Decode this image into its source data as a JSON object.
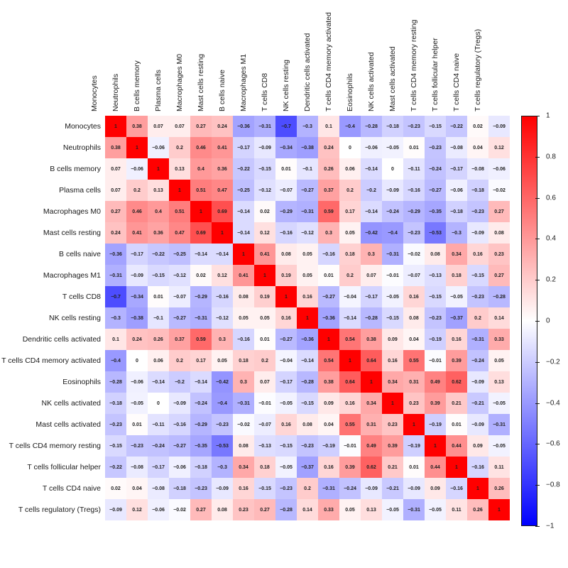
{
  "chart_data": {
    "type": "heatmap",
    "subtype": "correlation-matrix",
    "title": "",
    "categories": [
      "Monocytes",
      "Neutrophils",
      "B cells memory",
      "Plasma cells",
      "Macrophages M0",
      "Mast cells resting",
      "B cells naive",
      "Macrophages M1",
      "T cells CD8",
      "NK cells resting",
      "Dendritic cells activated",
      "T cells CD4 memory activated",
      "Eosinophils",
      "NK cells activated",
      "Mast cells activated",
      "T cells CD4 memory resting",
      "T cells follicular helper",
      "T cells CD4 naive",
      "T cells regulatory (Tregs)"
    ],
    "matrix": [
      [
        1,
        0.38,
        0.07,
        0.07,
        0.27,
        0.24,
        -0.36,
        -0.31,
        -0.7,
        -0.3,
        0.1,
        -0.4,
        -0.28,
        -0.18,
        -0.23,
        -0.15,
        -0.22,
        0.02,
        -0.09
      ],
      [
        0.38,
        1,
        -0.06,
        0.2,
        0.46,
        0.41,
        -0.17,
        -0.09,
        -0.34,
        -0.38,
        0.24,
        0,
        -0.06,
        -0.05,
        0.01,
        -0.23,
        -0.08,
        0.04,
        0.12
      ],
      [
        0.07,
        -0.06,
        1,
        0.13,
        0.4,
        0.36,
        -0.22,
        -0.15,
        0.01,
        -0.1,
        0.26,
        0.06,
        -0.14,
        0,
        -0.11,
        -0.24,
        -0.17,
        -0.08,
        -0.06
      ],
      [
        0.07,
        0.2,
        0.13,
        1,
        0.51,
        0.47,
        -0.25,
        -0.12,
        -0.07,
        -0.27,
        0.37,
        0.2,
        -0.2,
        -0.09,
        -0.16,
        -0.27,
        -0.06,
        -0.18,
        -0.02
      ],
      [
        0.27,
        0.46,
        0.4,
        0.51,
        1,
        0.69,
        -0.14,
        0.02,
        -0.29,
        -0.31,
        0.59,
        0.17,
        -0.14,
        -0.24,
        -0.29,
        -0.35,
        -0.18,
        -0.23,
        0.27
      ],
      [
        0.24,
        0.41,
        0.36,
        0.47,
        0.69,
        1,
        -0.14,
        0.12,
        -0.16,
        -0.12,
        0.3,
        0.05,
        -0.42,
        -0.4,
        -0.23,
        -0.53,
        -0.3,
        -0.09,
        0.08
      ],
      [
        -0.36,
        -0.17,
        -0.22,
        -0.25,
        -0.14,
        -0.14,
        1,
        0.41,
        0.08,
        0.05,
        -0.16,
        0.18,
        0.3,
        -0.31,
        -0.02,
        0.08,
        0.34,
        0.16,
        0.23
      ],
      [
        -0.31,
        -0.09,
        -0.15,
        -0.12,
        0.02,
        0.12,
        0.41,
        1,
        0.19,
        0.05,
        0.01,
        0.2,
        0.07,
        -0.01,
        -0.07,
        -0.13,
        0.18,
        -0.15,
        0.27
      ],
      [
        -0.7,
        -0.34,
        0.01,
        -0.07,
        -0.29,
        -0.16,
        0.08,
        0.19,
        1,
        0.16,
        -0.27,
        -0.04,
        -0.17,
        -0.05,
        0.16,
        -0.15,
        -0.05,
        -0.23,
        -0.28
      ],
      [
        -0.3,
        -0.38,
        -0.1,
        -0.27,
        -0.31,
        -0.12,
        0.05,
        0.05,
        0.16,
        1,
        -0.36,
        -0.14,
        -0.28,
        -0.15,
        0.08,
        -0.23,
        -0.37,
        0.2,
        0.14
      ],
      [
        0.1,
        0.24,
        0.26,
        0.37,
        0.59,
        0.3,
        -0.16,
        0.01,
        -0.27,
        -0.36,
        1,
        0.54,
        0.38,
        0.09,
        0.04,
        -0.19,
        0.16,
        -0.31,
        0.33
      ],
      [
        -0.4,
        0,
        0.06,
        0.2,
        0.17,
        0.05,
        0.18,
        0.2,
        -0.04,
        -0.14,
        0.54,
        1,
        0.64,
        0.16,
        0.55,
        -0.01,
        0.39,
        -0.24,
        0.05
      ],
      [
        -0.28,
        -0.06,
        -0.14,
        -0.2,
        -0.14,
        -0.42,
        0.3,
        0.07,
        -0.17,
        -0.28,
        0.38,
        0.64,
        1,
        0.34,
        0.31,
        0.49,
        0.62,
        -0.09,
        0.13
      ],
      [
        -0.18,
        -0.05,
        0,
        -0.09,
        -0.24,
        -0.4,
        -0.31,
        -0.01,
        -0.05,
        -0.15,
        0.09,
        0.16,
        0.34,
        1,
        0.23,
        0.39,
        0.21,
        -0.21,
        -0.05
      ],
      [
        -0.23,
        0.01,
        -0.11,
        -0.16,
        -0.29,
        -0.23,
        -0.02,
        -0.07,
        0.16,
        0.08,
        0.04,
        0.55,
        0.31,
        0.23,
        1,
        -0.19,
        0.01,
        -0.09,
        -0.31
      ],
      [
        -0.15,
        -0.23,
        -0.24,
        -0.27,
        -0.35,
        -0.53,
        0.08,
        -0.13,
        -0.15,
        -0.23,
        -0.19,
        -0.01,
        0.49,
        0.39,
        -0.19,
        1,
        0.44,
        0.09,
        -0.05
      ],
      [
        -0.22,
        -0.08,
        -0.17,
        -0.06,
        -0.18,
        -0.3,
        0.34,
        0.18,
        -0.05,
        -0.37,
        0.16,
        0.39,
        0.62,
        0.21,
        0.01,
        0.44,
        1,
        -0.16,
        0.11
      ],
      [
        0.02,
        0.04,
        -0.08,
        -0.18,
        -0.23,
        -0.09,
        0.16,
        -0.15,
        -0.23,
        0.2,
        -0.31,
        -0.24,
        -0.09,
        -0.21,
        -0.09,
        0.09,
        -0.16,
        1,
        0.26
      ],
      [
        -0.09,
        0.12,
        -0.06,
        -0.02,
        0.27,
        0.08,
        0.23,
        0.27,
        -0.28,
        0.14,
        0.33,
        0.05,
        0.13,
        -0.05,
        -0.31,
        -0.05,
        0.11,
        0.26,
        1
      ]
    ],
    "value_range": [
      -1,
      1
    ],
    "grid": false,
    "cell_values_shown": true,
    "colorbar": {
      "position": "right",
      "ticks": [
        1,
        0.8,
        0.6,
        0.4,
        0.2,
        0,
        -0.2,
        -0.4,
        -0.6,
        -0.8,
        -1
      ],
      "max_color": "#ff0000",
      "mid_color": "#ffffff",
      "min_color": "#0000ff"
    }
  }
}
